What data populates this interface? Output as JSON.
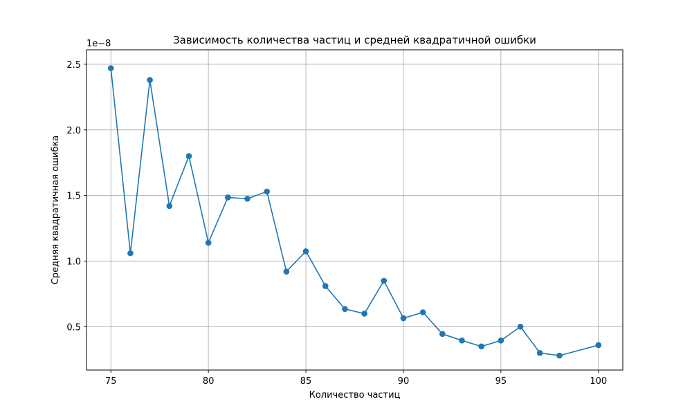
{
  "chart_data": {
    "type": "line",
    "title": "Зависимость количества частиц и средней квадратичной ошибки",
    "xlabel": "Количество частиц",
    "ylabel": "Средняя квадратичная ошибка",
    "y_offset_label": "1e−8",
    "xlim": [
      73.75,
      101.25
    ],
    "ylim": [
      0.17,
      2.61
    ],
    "x_ticks": [
      75,
      80,
      85,
      90,
      95,
      100
    ],
    "x_tick_labels": [
      "75",
      "80",
      "85",
      "90",
      "95",
      "100"
    ],
    "y_ticks": [
      0.5,
      1.0,
      1.5,
      2.0,
      2.5
    ],
    "y_tick_labels": [
      "0.5",
      "1.0",
      "1.5",
      "2.0",
      "2.5"
    ],
    "grid": true,
    "series": [
      {
        "color": "#1f77b4",
        "marker": "circle",
        "points": [
          {
            "x": 75,
            "y": 2.47
          },
          {
            "x": 76,
            "y": 1.06
          },
          {
            "x": 77,
            "y": 2.38
          },
          {
            "x": 78,
            "y": 1.42
          },
          {
            "x": 79,
            "y": 1.8
          },
          {
            "x": 80,
            "y": 1.14
          },
          {
            "x": 81,
            "y": 1.485
          },
          {
            "x": 82,
            "y": 1.475
          },
          {
            "x": 83,
            "y": 1.53
          },
          {
            "x": 84,
            "y": 0.92
          },
          {
            "x": 85,
            "y": 1.075
          },
          {
            "x": 86,
            "y": 0.81
          },
          {
            "x": 87,
            "y": 0.635
          },
          {
            "x": 88,
            "y": 0.6
          },
          {
            "x": 89,
            "y": 0.85
          },
          {
            "x": 90,
            "y": 0.565
          },
          {
            "x": 91,
            "y": 0.61
          },
          {
            "x": 92,
            "y": 0.445
          },
          {
            "x": 93,
            "y": 0.395
          },
          {
            "x": 94,
            "y": 0.35
          },
          {
            "x": 95,
            "y": 0.395
          },
          {
            "x": 96,
            "y": 0.5
          },
          {
            "x": 97,
            "y": 0.3
          },
          {
            "x": 98,
            "y": 0.28
          },
          {
            "x": 100,
            "y": 0.36
          }
        ]
      }
    ]
  }
}
